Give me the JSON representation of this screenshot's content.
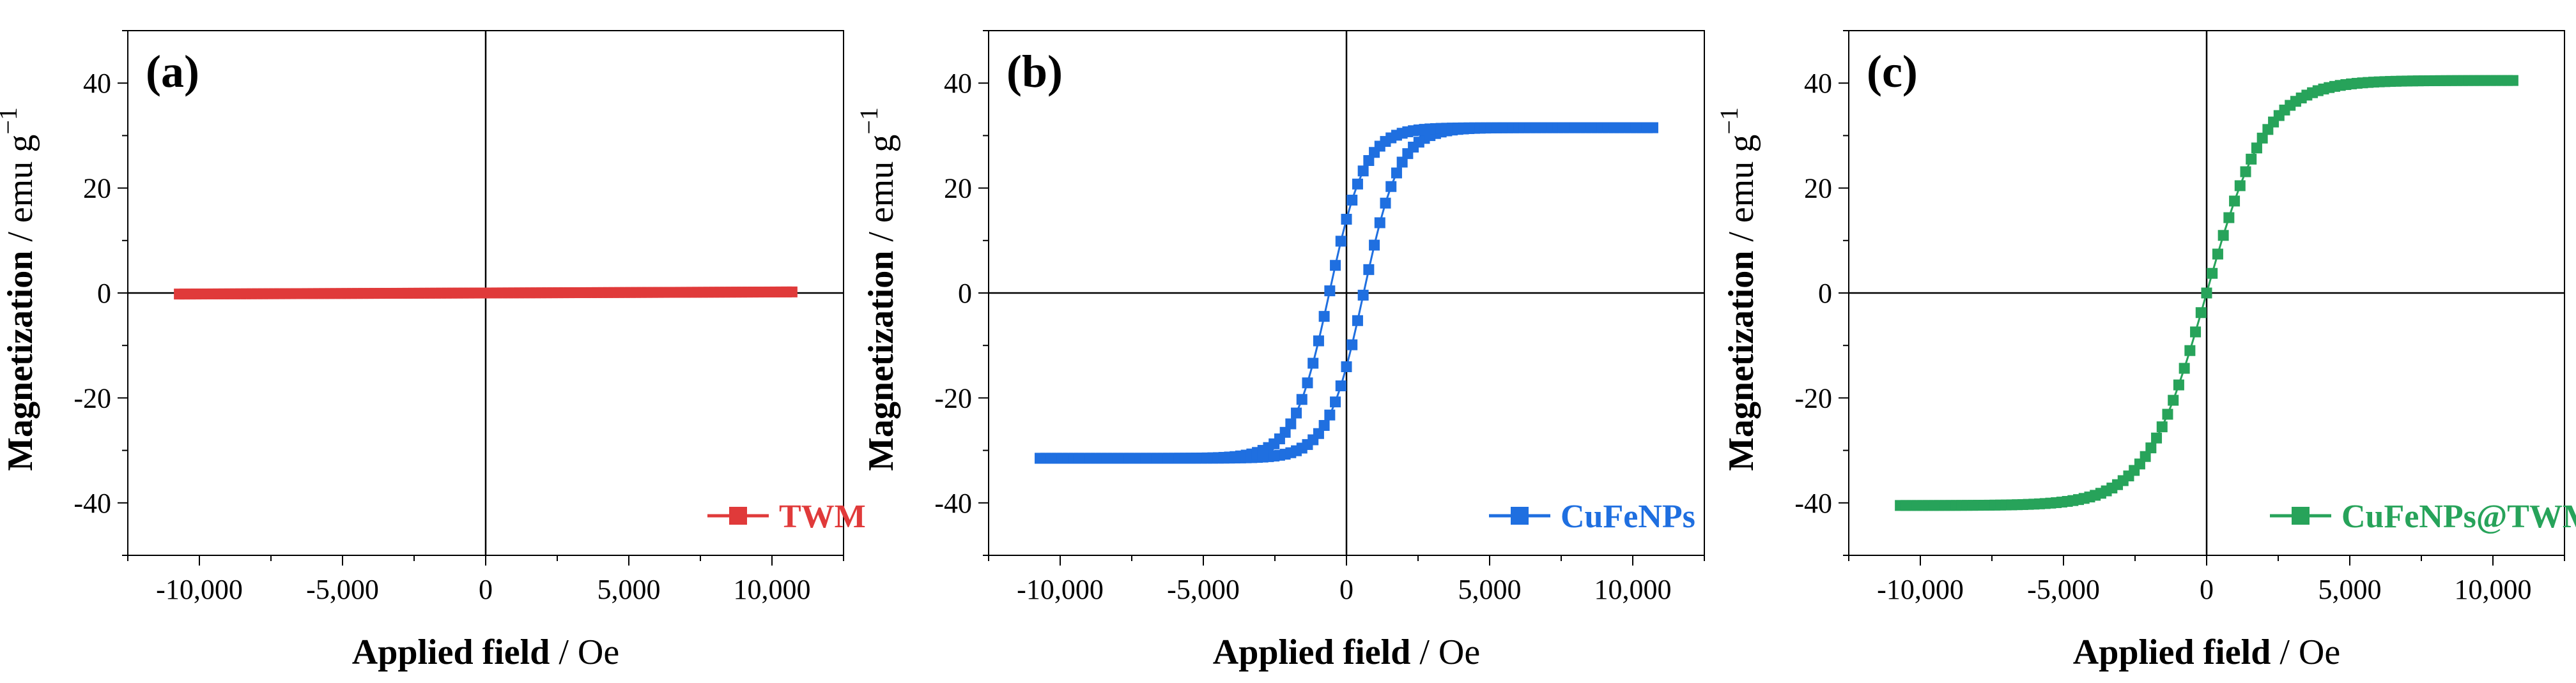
{
  "chart_data": [
    {
      "type": "line",
      "panel_label": "(a)",
      "xlabel": "Applied field",
      "xunit": "Oe",
      "ylabel": "Magnetization",
      "yunit": "emu g",
      "yunit_exp": "−1",
      "xlim": [
        -12500,
        12500
      ],
      "ylim": [
        -50,
        50
      ],
      "xticks": [
        -10000,
        -5000,
        0,
        5000,
        10000
      ],
      "xtick_labels": [
        "-10,000",
        "-5,000",
        "0",
        "5,000",
        "10,000"
      ],
      "yticks": [
        -40,
        -20,
        0,
        20,
        40
      ],
      "ytick_labels": [
        "-40",
        "-20",
        "0",
        "20",
        "40"
      ],
      "legend": "TWM",
      "legend_position": "bottom-right",
      "color": "#e03a3a",
      "series": [
        {
          "name": "TWM",
          "model": "paramagnetic",
          "ms": 0.2,
          "h0": 5000,
          "hc": 0,
          "hmax": 10700
        }
      ]
    },
    {
      "type": "line",
      "panel_label": "(b)",
      "xlabel": "Applied field",
      "xunit": "Oe",
      "ylabel": "Magnetization",
      "yunit": "emu g",
      "yunit_exp": "−1",
      "xlim": [
        -12500,
        12500
      ],
      "ylim": [
        -50,
        50
      ],
      "xticks": [
        -10000,
        -5000,
        0,
        5000,
        10000
      ],
      "xtick_labels": [
        "-10,000",
        "-5,000",
        "0",
        "5,000",
        "10,000"
      ],
      "yticks": [
        -40,
        -20,
        0,
        20,
        40
      ],
      "ytick_labels": [
        "-40",
        "-20",
        "0",
        "20",
        "40"
      ],
      "legend": "CuFeNPs",
      "legend_position": "bottom-right",
      "color": "#1f6fe0",
      "series": [
        {
          "name": "CuFeNPs",
          "model": "hysteresis",
          "ms": 31.5,
          "h0": 1250,
          "hc": 600,
          "hmax": 10700
        }
      ]
    },
    {
      "type": "line",
      "panel_label": "(c)",
      "xlabel": "Applied field",
      "xunit": "Oe",
      "ylabel": "Magnetization",
      "yunit": "emu g",
      "yunit_exp": "−1",
      "xlim": [
        -12500,
        12500
      ],
      "ylim": [
        -50,
        50
      ],
      "xticks": [
        -10000,
        -5000,
        0,
        5000,
        10000
      ],
      "xtick_labels": [
        "-10,000",
        "-5,000",
        "0",
        "5,000",
        "10,000"
      ],
      "yticks": [
        -40,
        -20,
        0,
        20,
        40
      ],
      "ytick_labels": [
        "-40",
        "-20",
        "0",
        "20",
        "40"
      ],
      "legend": "CuFeNPs@TWM",
      "legend_position": "bottom-right",
      "color": "#27a35a",
      "series": [
        {
          "name": "CuFeNPs@TWM",
          "model": "superparamagnetic",
          "ms": 40.5,
          "h0": 2100,
          "hc": 0,
          "hmax": 10700
        }
      ]
    }
  ]
}
